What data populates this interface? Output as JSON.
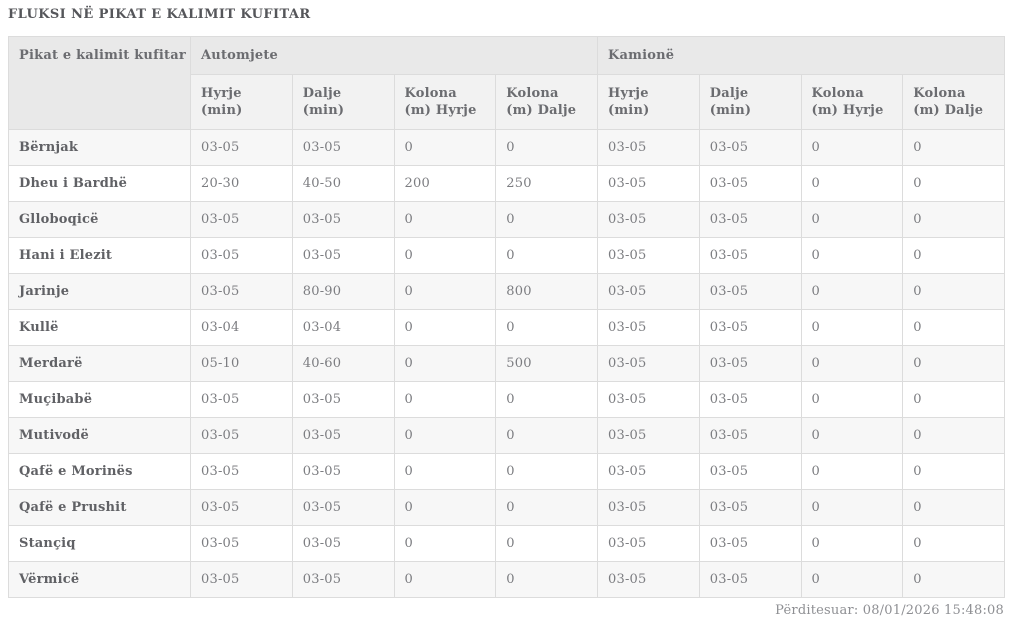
{
  "page": {
    "title": "FLUKSI NË PIKAT E KALIMIT KUFITAR",
    "updated": "Përditesuar: 08/01/2026 15:48:08"
  },
  "table": {
    "row_header": "Pikat e kalimit kufitar",
    "groups": [
      {
        "label": "Automjete",
        "columns": [
          "Hyrje (min)",
          "Dalje (min)",
          "Kolona (m) Hyrje",
          "Kolona (m) Dalje"
        ]
      },
      {
        "label": "Kamionë",
        "columns": [
          "Hyrje (min)",
          "Dalje (min)",
          "Kolona (m) Hyrje",
          "Kolona (m) Dalje"
        ]
      }
    ],
    "rows": [
      {
        "name": "Bërnjak",
        "values": [
          "03-05",
          "03-05",
          "0",
          "0",
          "03-05",
          "03-05",
          "0",
          "0"
        ]
      },
      {
        "name": "Dheu i Bardhë",
        "values": [
          "20-30",
          "40-50",
          "200",
          "250",
          "03-05",
          "03-05",
          "0",
          "0"
        ]
      },
      {
        "name": "Glloboqicë",
        "values": [
          "03-05",
          "03-05",
          "0",
          "0",
          "03-05",
          "03-05",
          "0",
          "0"
        ]
      },
      {
        "name": "Hani i Elezit",
        "values": [
          "03-05",
          "03-05",
          "0",
          "0",
          "03-05",
          "03-05",
          "0",
          "0"
        ]
      },
      {
        "name": "Jarinje",
        "values": [
          "03-05",
          "80-90",
          "0",
          "800",
          "03-05",
          "03-05",
          "0",
          "0"
        ]
      },
      {
        "name": "Kullë",
        "values": [
          "03-04",
          "03-04",
          "0",
          "0",
          "03-05",
          "03-05",
          "0",
          "0"
        ]
      },
      {
        "name": "Merdarë",
        "values": [
          "05-10",
          "40-60",
          "0",
          "500",
          "03-05",
          "03-05",
          "0",
          "0"
        ]
      },
      {
        "name": "Muçibabë",
        "values": [
          "03-05",
          "03-05",
          "0",
          "0",
          "03-05",
          "03-05",
          "0",
          "0"
        ]
      },
      {
        "name": "Mutivodë",
        "values": [
          "03-05",
          "03-05",
          "0",
          "0",
          "03-05",
          "03-05",
          "0",
          "0"
        ]
      },
      {
        "name": "Qafë e Morinës",
        "values": [
          "03-05",
          "03-05",
          "0",
          "0",
          "03-05",
          "03-05",
          "0",
          "0"
        ]
      },
      {
        "name": "Qafë e Prushit",
        "values": [
          "03-05",
          "03-05",
          "0",
          "0",
          "03-05",
          "03-05",
          "0",
          "0"
        ]
      },
      {
        "name": "Stançiq",
        "values": [
          "03-05",
          "03-05",
          "0",
          "0",
          "03-05",
          "03-05",
          "0",
          "0"
        ]
      },
      {
        "name": "Vërmicë",
        "values": [
          "03-05",
          "03-05",
          "0",
          "0",
          "03-05",
          "03-05",
          "0",
          "0"
        ]
      }
    ]
  },
  "colors": {
    "header_bg": "#e9e9e9",
    "subheader_bg": "#f2f2f2",
    "stripe_bg": "#f7f7f7",
    "border": "#dcdcdc",
    "title_text": "#55565a",
    "cell_text": "#7c7d81"
  }
}
